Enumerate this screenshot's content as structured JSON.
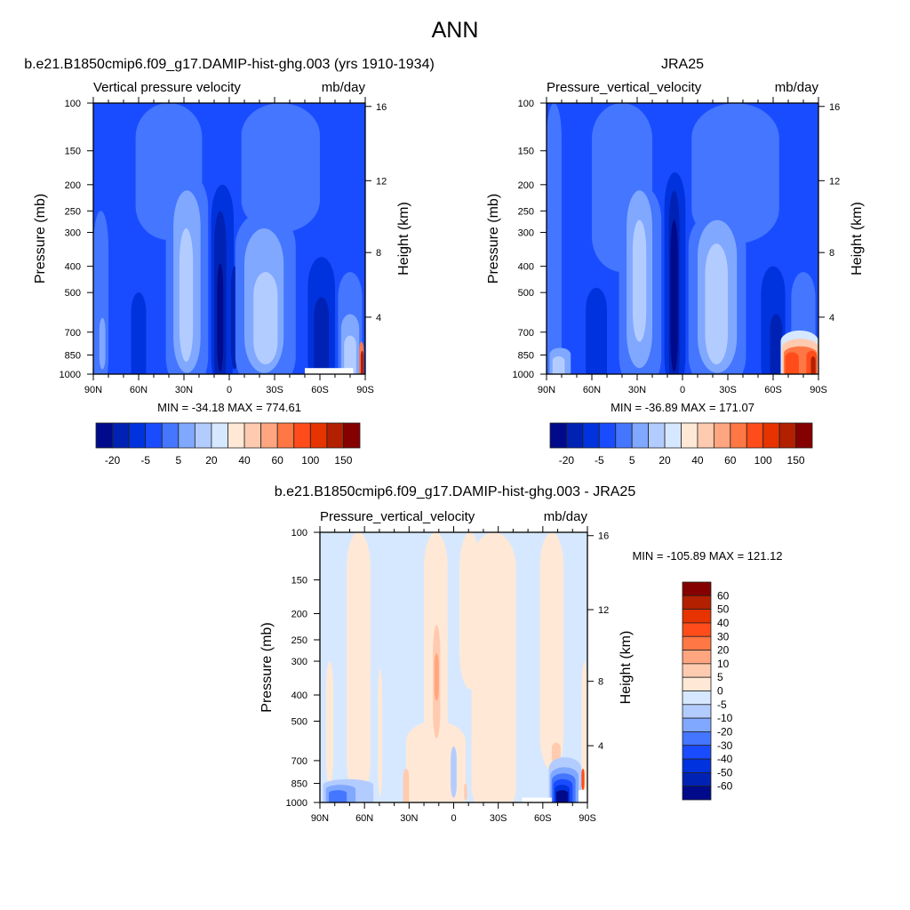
{
  "main_title": "ANN",
  "colors": [
    "#000a8a",
    "#0022b4",
    "#0033dd",
    "#1a4cff",
    "#4476ff",
    "#80a8ff",
    "#b3ccff",
    "#d6e8ff",
    "#ffe9d6",
    "#ffcbb0",
    "#ffa680",
    "#ff7744",
    "#ff4c1a",
    "#e63300",
    "#b22000",
    "#850000"
  ],
  "chart_data": [
    {
      "type": "heatmap",
      "title": "b.e21.B1850cmip6.f09_g17.DAMIP-hist-ghg.003 (yrs 1910-1934)",
      "left_string": "Vertical pressure velocity",
      "right_string": "mb/day",
      "ylabel": "Pressure (mb)",
      "ylabel_right": "Height (km)",
      "x_ticks": [
        "90N",
        "60N",
        "30N",
        "0",
        "30S",
        "60S",
        "90S"
      ],
      "y_ticks": [
        "100",
        "150",
        "200",
        "250",
        "300",
        "400",
        "500",
        "700",
        "850",
        "1000"
      ],
      "y_right_ticks": [
        "16",
        "12",
        "8",
        "4"
      ],
      "ylim": [
        1000,
        100
      ],
      "y_scale": "log",
      "stats": "MIN = -34.18  MAX = 774.61",
      "colorbar": {
        "orientation": "horizontal",
        "labels": [
          "-20",
          "-5",
          "5",
          "20",
          "40",
          "60",
          "100",
          "150"
        ]
      },
      "background_level": 4,
      "features": [
        {
          "lat": [
            62,
            18
          ],
          "p": [
            100,
            320
          ],
          "level": 5
        },
        {
          "lat": [
            90,
            80
          ],
          "p": [
            250,
            1000
          ],
          "level": 5
        },
        {
          "lat": [
            86,
            82
          ],
          "p": [
            620,
            960
          ],
          "level": 6
        },
        {
          "lat": [
            65,
            55
          ],
          "p": [
            500,
            1000
          ],
          "level": 3
        },
        {
          "lat": [
            42,
            14
          ],
          "p": [
            180,
            1000
          ],
          "level": 5
        },
        {
          "lat": [
            37,
            19
          ],
          "p": [
            210,
            990
          ],
          "level": 6
        },
        {
          "lat": [
            33,
            24
          ],
          "p": [
            290,
            900
          ],
          "level": 7
        },
        {
          "lat": [
            12,
            -3
          ],
          "p": [
            200,
            1000
          ],
          "level": 3
        },
        {
          "lat": [
            10,
            2
          ],
          "p": [
            250,
            1000
          ],
          "level": 2
        },
        {
          "lat": [
            8,
            4
          ],
          "p": [
            390,
            980
          ],
          "level": 1
        },
        {
          "lat": [
            -1,
            -6
          ],
          "p": [
            400,
            960
          ],
          "level": 2
        },
        {
          "lat": [
            -8,
            -60
          ],
          "p": [
            100,
            300
          ],
          "level": 5
        },
        {
          "lat": [
            -4,
            -44
          ],
          "p": [
            250,
            1000
          ],
          "level": 5
        },
        {
          "lat": [
            -10,
            -36
          ],
          "p": [
            290,
            990
          ],
          "level": 6
        },
        {
          "lat": [
            -16,
            -32
          ],
          "p": [
            420,
            920
          ],
          "level": 7
        },
        {
          "lat": [
            -52,
            -70
          ],
          "p": [
            370,
            1000
          ],
          "level": 3
        },
        {
          "lat": [
            -56,
            -66
          ],
          "p": [
            520,
            1000
          ],
          "level": 2
        },
        {
          "lat": [
            -72,
            -88
          ],
          "p": [
            420,
            1000
          ],
          "level": 5
        },
        {
          "lat": [
            -74,
            -86
          ],
          "p": [
            600,
            1000
          ],
          "level": 6
        },
        {
          "lat": [
            -76,
            -84
          ],
          "p": [
            720,
            1000
          ],
          "level": 7
        },
        {
          "lat": [
            -86,
            -89
          ],
          "p": [
            760,
            1000
          ],
          "level": 12
        },
        {
          "lat": [
            -87,
            -89
          ],
          "p": [
            820,
            1000
          ],
          "level": 15
        }
      ],
      "missing": [
        {
          "lat": [
            -50,
            -82
          ],
          "p": [
            950,
            1000
          ]
        }
      ]
    },
    {
      "type": "heatmap",
      "title": "JRA25",
      "left_string": "Pressure_vertical_velocity",
      "right_string": "mb/day",
      "ylabel": "Pressure (mb)",
      "ylabel_right": "Height (km)",
      "x_ticks": [
        "90N",
        "60N",
        "30N",
        "0",
        "30S",
        "60S",
        "90S"
      ],
      "y_ticks": [
        "100",
        "150",
        "200",
        "250",
        "300",
        "400",
        "500",
        "700",
        "850",
        "1000"
      ],
      "y_right_ticks": [
        "16",
        "12",
        "8",
        "4"
      ],
      "ylim": [
        1000,
        100
      ],
      "y_scale": "log",
      "stats": "MIN = -36.89  MAX = 171.07",
      "colorbar": {
        "orientation": "horizontal",
        "labels": [
          "-20",
          "-5",
          "5",
          "20",
          "40",
          "60",
          "100",
          "150"
        ]
      },
      "background_level": 4,
      "features": [
        {
          "lat": [
            90,
            80
          ],
          "p": [
            100,
            1000
          ],
          "level": 5
        },
        {
          "lat": [
            60,
            20
          ],
          "p": [
            100,
            420
          ],
          "level": 5
        },
        {
          "lat": [
            88,
            74
          ],
          "p": [
            800,
            1000
          ],
          "level": 6
        },
        {
          "lat": [
            86,
            78
          ],
          "p": [
            860,
            1000
          ],
          "level": 7
        },
        {
          "lat": [
            64,
            50
          ],
          "p": [
            480,
            1000
          ],
          "level": 3
        },
        {
          "lat": [
            42,
            14
          ],
          "p": [
            200,
            1000
          ],
          "level": 5
        },
        {
          "lat": [
            37,
            20
          ],
          "p": [
            210,
            950
          ],
          "level": 6
        },
        {
          "lat": [
            33,
            24
          ],
          "p": [
            270,
            760
          ],
          "level": 7
        },
        {
          "lat": [
            12,
            -2
          ],
          "p": [
            180,
            1000
          ],
          "level": 3
        },
        {
          "lat": [
            9,
            2
          ],
          "p": [
            210,
            1000
          ],
          "level": 2
        },
        {
          "lat": [
            8,
            3
          ],
          "p": [
            270,
            980
          ],
          "level": 1
        },
        {
          "lat": [
            -6,
            -64
          ],
          "p": [
            100,
            330
          ],
          "level": 5
        },
        {
          "lat": [
            -4,
            -42
          ],
          "p": [
            250,
            1000
          ],
          "level": 5
        },
        {
          "lat": [
            -10,
            -36
          ],
          "p": [
            270,
            990
          ],
          "level": 6
        },
        {
          "lat": [
            -15,
            -30
          ],
          "p": [
            330,
            920
          ],
          "level": 7
        },
        {
          "lat": [
            -52,
            -68
          ],
          "p": [
            400,
            1000
          ],
          "level": 3
        },
        {
          "lat": [
            -58,
            -66
          ],
          "p": [
            600,
            1000
          ],
          "level": 2
        },
        {
          "lat": [
            -72,
            -88
          ],
          "p": [
            420,
            1000
          ],
          "level": 5
        },
        {
          "lat": [
            -65,
            -90
          ],
          "p": [
            690,
            1000
          ],
          "level": 8
        },
        {
          "lat": [
            -66,
            -90
          ],
          "p": [
            740,
            1000
          ],
          "level": 10
        },
        {
          "lat": [
            -67,
            -89
          ],
          "p": [
            790,
            1000
          ],
          "level": 12
        },
        {
          "lat": [
            -68,
            -77
          ],
          "p": [
            830,
            1000
          ],
          "level": 13
        },
        {
          "lat": [
            -82,
            -89
          ],
          "p": [
            820,
            1000
          ],
          "level": 13
        },
        {
          "lat": [
            -85,
            -88
          ],
          "p": [
            860,
            1000
          ],
          "level": 15
        }
      ],
      "missing": []
    },
    {
      "type": "heatmap",
      "title": "b.e21.B1850cmip6.f09_g17.DAMIP-hist-ghg.003 - JRA25",
      "left_string": "Pressure_vertical_velocity",
      "right_string": "mb/day",
      "ylabel": "Pressure (mb)",
      "ylabel_right": "Height (km)",
      "x_ticks": [
        "90N",
        "60N",
        "30N",
        "0",
        "30S",
        "60S",
        "90S"
      ],
      "y_ticks": [
        "100",
        "150",
        "200",
        "250",
        "300",
        "400",
        "500",
        "700",
        "850",
        "1000"
      ],
      "y_right_ticks": [
        "16",
        "12",
        "8",
        "4"
      ],
      "ylim": [
        1000,
        100
      ],
      "y_scale": "log",
      "stats": "MIN = -105.89  MAX = 121.12",
      "colorbar": {
        "orientation": "vertical",
        "labels": [
          "60",
          "50",
          "40",
          "30",
          "20",
          "10",
          "5",
          "0",
          "-5",
          "-10",
          "-20",
          "-30",
          "-40",
          "-50",
          "-60"
        ]
      },
      "background_level": 8,
      "features": [
        {
          "lat": [
            72,
            56
          ],
          "p": [
            100,
            950
          ],
          "level": 9
        },
        {
          "lat": [
            86,
            81
          ],
          "p": [
            300,
            860
          ],
          "level": 9
        },
        {
          "lat": [
            51,
            48
          ],
          "p": [
            320,
            950
          ],
          "level": 9
        },
        {
          "lat": [
            20,
            4
          ],
          "p": [
            100,
            700
          ],
          "level": 9
        },
        {
          "lat": [
            32,
            -8
          ],
          "p": [
            500,
            1000
          ],
          "level": 9
        },
        {
          "lat": [
            -4,
            -18
          ],
          "p": [
            100,
            380
          ],
          "level": 9
        },
        {
          "lat": [
            -12,
            -42
          ],
          "p": [
            100,
            1000
          ],
          "level": 9
        },
        {
          "lat": [
            -58,
            -74
          ],
          "p": [
            100,
            760
          ],
          "level": 9
        },
        {
          "lat": [
            -86,
            -90
          ],
          "p": [
            300,
            1000
          ],
          "level": 9
        },
        {
          "lat": [
            14,
            9
          ],
          "p": [
            220,
            580
          ],
          "level": 10
        },
        {
          "lat": [
            13,
            10
          ],
          "p": [
            280,
            420
          ],
          "level": 11
        },
        {
          "lat": [
            34,
            30
          ],
          "p": [
            750,
            1000
          ],
          "level": 10
        },
        {
          "lat": [
            -7,
            -9
          ],
          "p": [
            850,
            980
          ],
          "level": 10
        },
        {
          "lat": [
            -66,
            -72
          ],
          "p": [
            600,
            720
          ],
          "level": 10
        },
        {
          "lat": [
            2,
            -2
          ],
          "p": [
            620,
            960
          ],
          "level": 7
        },
        {
          "lat": [
            88,
            54
          ],
          "p": [
            820,
            1000
          ],
          "level": 7
        },
        {
          "lat": [
            86,
            66
          ],
          "p": [
            860,
            1000
          ],
          "level": 6
        },
        {
          "lat": [
            84,
            72
          ],
          "p": [
            900,
            1000
          ],
          "level": 5
        },
        {
          "lat": [
            -64,
            -86
          ],
          "p": [
            680,
            1000
          ],
          "level": 7
        },
        {
          "lat": [
            -65,
            -84
          ],
          "p": [
            740,
            1000
          ],
          "level": 6
        },
        {
          "lat": [
            -66,
            -82
          ],
          "p": [
            780,
            1000
          ],
          "level": 5
        },
        {
          "lat": [
            -67,
            -80
          ],
          "p": [
            820,
            1000
          ],
          "level": 4
        },
        {
          "lat": [
            -68,
            -78
          ],
          "p": [
            860,
            1000
          ],
          "level": 3
        },
        {
          "lat": [
            -69,
            -77
          ],
          "p": [
            900,
            1000
          ],
          "level": 1
        },
        {
          "lat": [
            -86,
            -88
          ],
          "p": [
            750,
            900
          ],
          "level": 13
        }
      ],
      "missing": [
        {
          "lat": [
            -46,
            -66
          ],
          "p": [
            960,
            1000
          ]
        },
        {
          "lat": [
            -84,
            -90
          ],
          "p": [
            900,
            1000
          ]
        }
      ]
    }
  ]
}
